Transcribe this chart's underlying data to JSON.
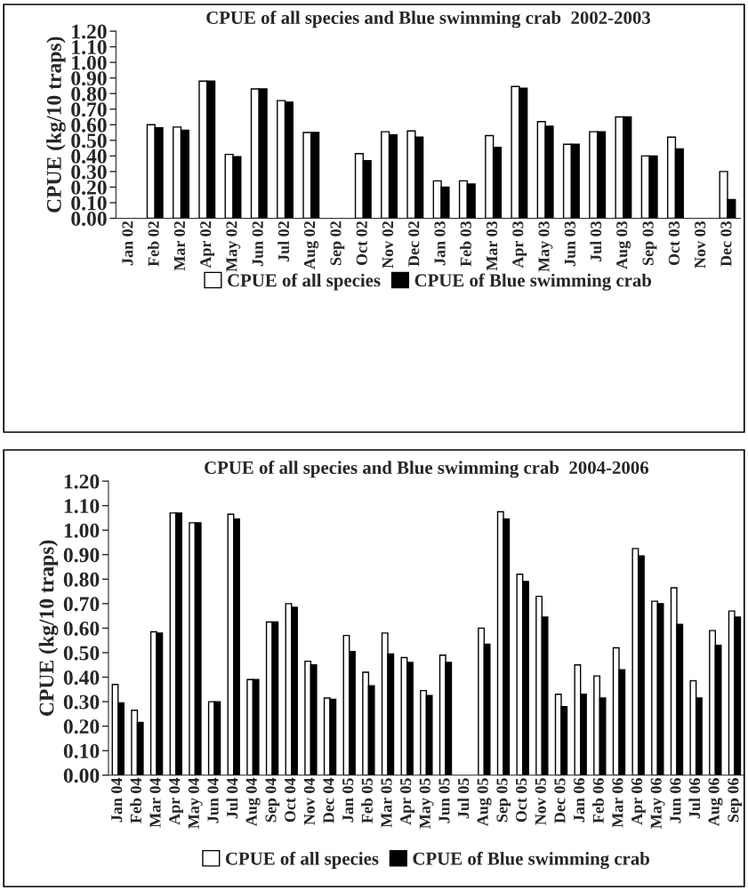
{
  "chart_data": [
    {
      "type": "bar",
      "title": "CPUE of all species and Blue swimming crab  2002-2003",
      "ylabel": "CPUE (kg/10 traps)",
      "categories": [
        "Jan 02",
        "Feb 02",
        "Mar 02",
        "Apr 02",
        "May 02",
        "Jun 02",
        "Jul 02",
        "Aug 02",
        "Sep 02",
        "Oct 02",
        "Nov 02",
        "Dec 02",
        "Jan 03",
        "Feb 03",
        "Mar 03",
        "Apr 03",
        "May 03",
        "Jun 03",
        "Jul 03",
        "Aug 03",
        "Sep 03",
        "Oct 03",
        "Nov 03",
        "Dec 03"
      ],
      "series": [
        {
          "name": "CPUE of all species",
          "color": "#ffffff",
          "values": [
            null,
            0.6,
            0.585,
            0.88,
            0.41,
            0.83,
            0.755,
            0.55,
            null,
            0.415,
            0.555,
            0.56,
            0.24,
            0.24,
            0.53,
            0.845,
            0.62,
            0.475,
            0.555,
            0.65,
            0.4,
            0.52,
            null,
            0.3
          ]
        },
        {
          "name": "CPUE of Blue swimming crab",
          "color": "#000000",
          "values": [
            null,
            0.58,
            0.565,
            0.88,
            0.395,
            0.83,
            0.745,
            0.55,
            null,
            0.37,
            0.535,
            0.52,
            0.2,
            0.22,
            0.455,
            0.835,
            0.59,
            0.475,
            0.555,
            0.65,
            0.4,
            0.445,
            null,
            0.12
          ]
        }
      ],
      "ylim": [
        0,
        1.2
      ],
      "yticks": [
        {
          "value": 0,
          "label": "0.00"
        },
        {
          "value": 0.1,
          "label": "0.10"
        },
        {
          "value": 0.2,
          "label": "0.20"
        },
        {
          "value": 0.3,
          "label": "0.30"
        },
        {
          "value": 0.4,
          "label": "0.40"
        },
        {
          "value": 0.5,
          "label": "0.50"
        },
        {
          "value": 0.6,
          "label": "0.60"
        },
        {
          "value": 0.7,
          "label": "0.70"
        },
        {
          "value": 0.8,
          "label": "0.80"
        },
        {
          "value": 0.9,
          "label": "0.90"
        },
        {
          "value": 1.0,
          "label": "1.00"
        },
        {
          "value": 1.1,
          "label": "1.10"
        },
        {
          "value": 1.2,
          "label": "1.20"
        }
      ],
      "legend": "bottom"
    },
    {
      "type": "bar",
      "title": "CPUE of all species and Blue swimming crab  2004-2006",
      "ylabel": "CPUE (kg/10 traps)",
      "categories": [
        "Jan 04",
        "Feb 04",
        "Mar 04",
        "Apr 04",
        "May 04",
        "Jun 04",
        "Jul 04",
        "Aug 04",
        "Sep 04",
        "Oct 04",
        "Nov 04",
        "Dec 04",
        "Jan 05",
        "Feb 05",
        "Mar 05",
        "Apr 05",
        "May 05",
        "Jun 05",
        "Jul 05",
        "Aug 05",
        "Sep 05",
        "Oct 05",
        "Nov 05",
        "Dec 05",
        "Jan 06",
        "Feb 06",
        "Mar 06",
        "Apr 06",
        "May 06",
        "Jun 06",
        "Jul 06",
        "Aug 06",
        "Sep 06"
      ],
      "series": [
        {
          "name": "CPUE of all species",
          "color": "#ffffff",
          "values": [
            0.37,
            0.265,
            0.585,
            1.07,
            1.03,
            0.3,
            1.065,
            0.39,
            0.625,
            0.7,
            0.465,
            0.315,
            0.57,
            0.42,
            0.58,
            0.48,
            0.345,
            0.49,
            null,
            0.6,
            1.075,
            0.82,
            0.73,
            0.33,
            0.45,
            0.405,
            0.52,
            0.925,
            0.71,
            0.765,
            0.385,
            0.59,
            0.67
          ]
        },
        {
          "name": "CPUE of Blue swimming crab",
          "color": "#000000",
          "values": [
            0.295,
            0.215,
            0.58,
            1.07,
            1.03,
            0.3,
            1.045,
            0.39,
            0.625,
            0.685,
            0.45,
            0.31,
            0.505,
            0.365,
            0.495,
            0.46,
            0.325,
            0.46,
            null,
            0.535,
            1.045,
            0.79,
            0.645,
            0.28,
            0.33,
            0.315,
            0.43,
            0.895,
            0.7,
            0.615,
            0.315,
            0.53,
            0.645
          ]
        }
      ],
      "ylim": [
        0,
        1.2
      ],
      "yticks": [
        {
          "value": 0,
          "label": "0.00"
        },
        {
          "value": 0.1,
          "label": "0.10"
        },
        {
          "value": 0.2,
          "label": "0.20"
        },
        {
          "value": 0.3,
          "label": "0.30"
        },
        {
          "value": 0.4,
          "label": "0.40"
        },
        {
          "value": 0.5,
          "label": "0.50"
        },
        {
          "value": 0.6,
          "label": "0.60"
        },
        {
          "value": 0.7,
          "label": "0.70"
        },
        {
          "value": 0.8,
          "label": "0.80"
        },
        {
          "value": 0.9,
          "label": "0.90"
        },
        {
          "value": 1.0,
          "label": "1.00"
        },
        {
          "value": 1.1,
          "label": "1.10"
        },
        {
          "value": 1.2,
          "label": "1.20"
        }
      ],
      "legend": "bottom"
    }
  ]
}
